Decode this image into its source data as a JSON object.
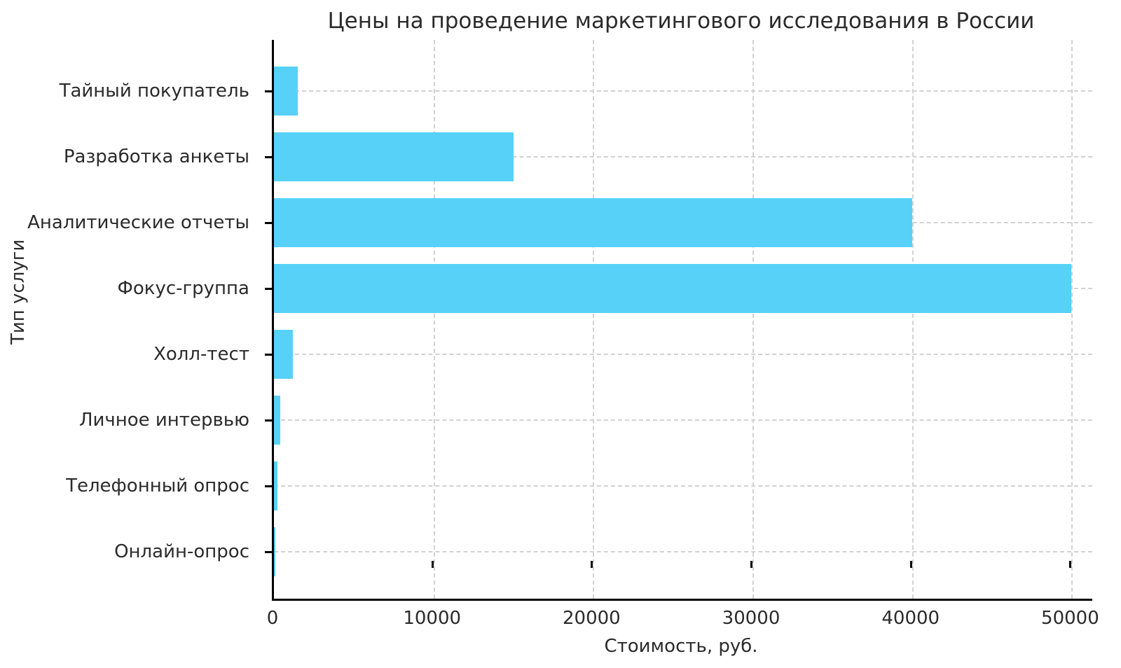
{
  "chart_data": {
    "type": "bar",
    "orientation": "horizontal",
    "title": "Цены на проведение маркетингового исследования в России",
    "xlabel": "Стоимость, руб.",
    "ylabel": "Тип услуги",
    "categories": [
      "Тайный покупатель",
      "Разработка анкеты",
      "Аналитические отчеты",
      "Фокус-группа",
      "Холл-тест",
      "Личное интервью",
      "Телефонный опрос",
      "Онлайн-опрос"
    ],
    "values": [
      1500,
      15000,
      40000,
      50000,
      1200,
      400,
      200,
      100
    ],
    "x_ticks": [
      0,
      10000,
      20000,
      30000,
      40000,
      50000
    ],
    "xlim": [
      0,
      51300
    ],
    "bar_color": "#57d1f7",
    "grid": true,
    "grid_style": "dashed",
    "background_color": "#ffffff",
    "text_color": "#2b2b2b"
  }
}
